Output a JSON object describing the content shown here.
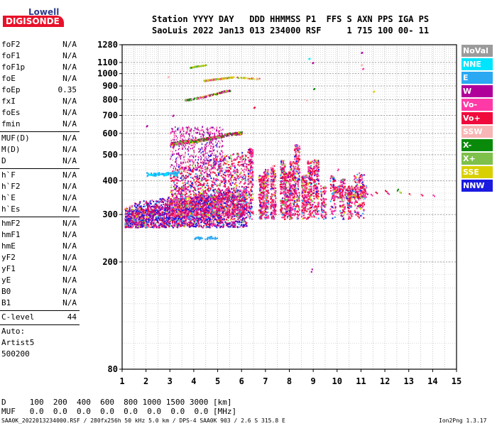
{
  "logo": {
    "line1": "Lowell",
    "line2": "DIGISONDE"
  },
  "header": {
    "line1": "Station YYYY DAY   DDD HHMMSS P1  FFS S AXN PPS IGA PS",
    "line2": "SaoLuis 2022 Jan13 013 234000 RSF     1 715 100 00- 11"
  },
  "params": {
    "group1": [
      {
        "name": "foF2",
        "value": "N/A"
      },
      {
        "name": "foF1",
        "value": "N/A"
      },
      {
        "name": "foF1p",
        "value": "N/A"
      },
      {
        "name": "foE",
        "value": "N/A"
      },
      {
        "name": "foEp",
        "value": "0.35"
      },
      {
        "name": "fxI",
        "value": "N/A"
      },
      {
        "name": "foEs",
        "value": "N/A"
      },
      {
        "name": "fmin",
        "value": "N/A"
      }
    ],
    "group2": [
      {
        "name": "MUF(D)",
        "value": "N/A"
      },
      {
        "name": "M(D)",
        "value": "N/A"
      },
      {
        "name": "D",
        "value": "N/A"
      }
    ],
    "group3": [
      {
        "name": "h`F",
        "value": "N/A"
      },
      {
        "name": "h`F2",
        "value": "N/A"
      },
      {
        "name": "h`E",
        "value": "N/A"
      },
      {
        "name": "h`Es",
        "value": "N/A"
      }
    ],
    "group4": [
      {
        "name": "hmF2",
        "value": "N/A"
      },
      {
        "name": "hmF1",
        "value": "N/A"
      },
      {
        "name": "hmE",
        "value": "N/A"
      },
      {
        "name": "yF2",
        "value": "N/A"
      },
      {
        "name": "yF1",
        "value": "N/A"
      },
      {
        "name": "yE",
        "value": "N/A"
      },
      {
        "name": "B0",
        "value": "N/A"
      },
      {
        "name": "B1",
        "value": "N/A"
      }
    ],
    "clevel": {
      "name": "C-level",
      "value": "44"
    },
    "auto": [
      "Auto:",
      "Artist5",
      "500200"
    ]
  },
  "legend": [
    {
      "label": "NoVal",
      "color": "#9b9b9b"
    },
    {
      "label": "NNE",
      "color": "#00e5ff"
    },
    {
      "label": "E",
      "color": "#2aa8f2"
    },
    {
      "label": "W",
      "color": "#b0009a"
    },
    {
      "label": "Vo-",
      "color": "#ff3aa6"
    },
    {
      "label": "Vo+",
      "color": "#f00a3c"
    },
    {
      "label": "SSW",
      "color": "#f7b5b5"
    },
    {
      "label": "X-",
      "color": "#0a8a0a"
    },
    {
      "label": "X+",
      "color": "#7dc04a"
    },
    {
      "label": "SSE",
      "color": "#d8d000"
    },
    {
      "label": "NNW",
      "color": "#1a1ae0"
    }
  ],
  "bottom": {
    "d_row": "D     100  200  400  600  800 1000 1500 3000 [km]",
    "muf_row": "MUF   0.0  0.0  0.0  0.0  0.0  0.0  0.0  0.0 [MHz]"
  },
  "footer": {
    "left": "SAA0K_2022013234000.RSF / 280fx256h 50 kHz 5.0 km / DPS-4 SAA0K 903 / 2.6 S 315.8 E",
    "right": "Ion2Png 1.3.17"
  },
  "chart_data": {
    "type": "scatter",
    "title": "",
    "xlabel": "",
    "ylabel": "",
    "xlim": [
      1,
      15
    ],
    "ylim": [
      80,
      1280
    ],
    "yscale": "log",
    "grid": true,
    "x_ticks": [
      "1",
      "2",
      "3",
      "4",
      "5",
      "6",
      "7",
      "8",
      "9",
      "10",
      "11",
      "12",
      "13",
      "14",
      "15"
    ],
    "y_ticks": [
      {
        "value": 80,
        "label": "80"
      },
      {
        "value": 200,
        "label": "200"
      },
      {
        "value": 300,
        "label": "300"
      },
      {
        "value": 400,
        "label": "400"
      },
      {
        "value": 500,
        "label": "500"
      },
      {
        "value": 600,
        "label": "600"
      },
      {
        "value": 700,
        "label": "700"
      },
      {
        "value": 800,
        "label": "800"
      },
      {
        "value": 900,
        "label": "900"
      },
      {
        "value": 1000,
        "label": "1000"
      },
      {
        "value": 1100,
        "label": "1100"
      },
      {
        "value": 1280,
        "label": "1280"
      }
    ],
    "series": [
      {
        "color_key": "dense_low_layer",
        "points": [
          [
            1.2,
            290
          ],
          [
            1.5,
            300
          ],
          [
            1.8,
            295
          ],
          [
            2.2,
            305
          ],
          [
            2.6,
            300
          ],
          [
            3.0,
            310
          ],
          [
            3.4,
            305
          ],
          [
            3.8,
            300
          ],
          [
            4.2,
            300
          ],
          [
            4.6,
            310
          ],
          [
            5.0,
            320
          ],
          [
            5.4,
            330
          ],
          [
            5.8,
            320
          ]
        ]
      },
      {
        "color_key": "trace_560",
        "points": [
          [
            3.0,
            550
          ],
          [
            3.5,
            560
          ],
          [
            4.0,
            565
          ],
          [
            4.5,
            575
          ],
          [
            5.0,
            585
          ],
          [
            5.5,
            600
          ],
          [
            6.0,
            605
          ]
        ]
      },
      {
        "color_key": "trace_820",
        "points": [
          [
            3.6,
            800
          ],
          [
            4.0,
            810
          ],
          [
            4.4,
            825
          ],
          [
            4.8,
            840
          ],
          [
            5.2,
            860
          ],
          [
            5.5,
            870
          ]
        ]
      },
      {
        "color_key": "trace_960",
        "points": [
          [
            4.4,
            945
          ],
          [
            4.8,
            955
          ],
          [
            5.2,
            965
          ],
          [
            5.6,
            975
          ],
          [
            6.8,
            960
          ]
        ]
      },
      {
        "color_key": "trace_1070",
        "points": [
          [
            3.8,
            1055
          ],
          [
            4.1,
            1070
          ],
          [
            4.5,
            1080
          ]
        ]
      },
      {
        "color_key": "trace_420",
        "points": [
          [
            2.0,
            420
          ],
          [
            2.5,
            425
          ],
          [
            3.0,
            430
          ],
          [
            3.4,
            435
          ]
        ]
      },
      {
        "color_key": "columns",
        "points": [
          [
            6.6,
            400
          ],
          [
            7.0,
            420
          ],
          [
            7.6,
            450
          ],
          [
            8.0,
            470
          ],
          [
            8.4,
            460
          ],
          [
            8.8,
            440
          ],
          [
            9.2,
            410
          ],
          [
            9.6,
            390
          ],
          [
            10.0,
            370
          ],
          [
            10.5,
            365
          ],
          [
            11.0,
            360
          ]
        ]
      },
      {
        "color_key": "sparse",
        "points": [
          [
            11.0,
            1200
          ],
          [
            11.0,
            1050
          ],
          [
            11.5,
            860
          ],
          [
            12.0,
            360
          ],
          [
            12.5,
            365
          ],
          [
            13.0,
            360
          ],
          [
            13.5,
            355
          ],
          [
            14.0,
            355
          ]
        ]
      }
    ]
  }
}
